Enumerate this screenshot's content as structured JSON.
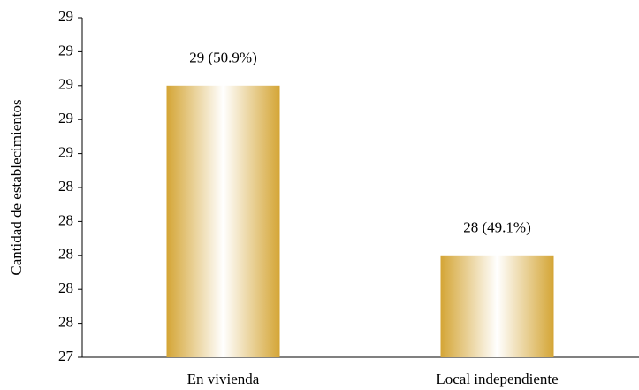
{
  "chart_data": {
    "type": "bar",
    "y_label": "Cantidad de establecimientos",
    "categories": [
      "En vivienda",
      "Local independiente"
    ],
    "values": [
      29,
      28
    ],
    "value_labels": [
      "29  (50.9%)",
      "28  (49.1%)"
    ],
    "color": "#d4a535",
    "ylim": [
      27.4,
      29.4
    ],
    "yticks": [
      {
        "value": 27.4,
        "label": "27"
      },
      {
        "value": 27.6,
        "label": "28"
      },
      {
        "value": 27.8,
        "label": "28"
      },
      {
        "value": 28.0,
        "label": "28"
      },
      {
        "value": 28.2,
        "label": "28"
      },
      {
        "value": 28.4,
        "label": "28"
      },
      {
        "value": 28.6,
        "label": "29"
      },
      {
        "value": 28.8,
        "label": "29"
      },
      {
        "value": 29.0,
        "label": "29"
      },
      {
        "value": 29.2,
        "label": "29"
      },
      {
        "value": 29.4,
        "label": "29"
      }
    ],
    "grid": false
  }
}
